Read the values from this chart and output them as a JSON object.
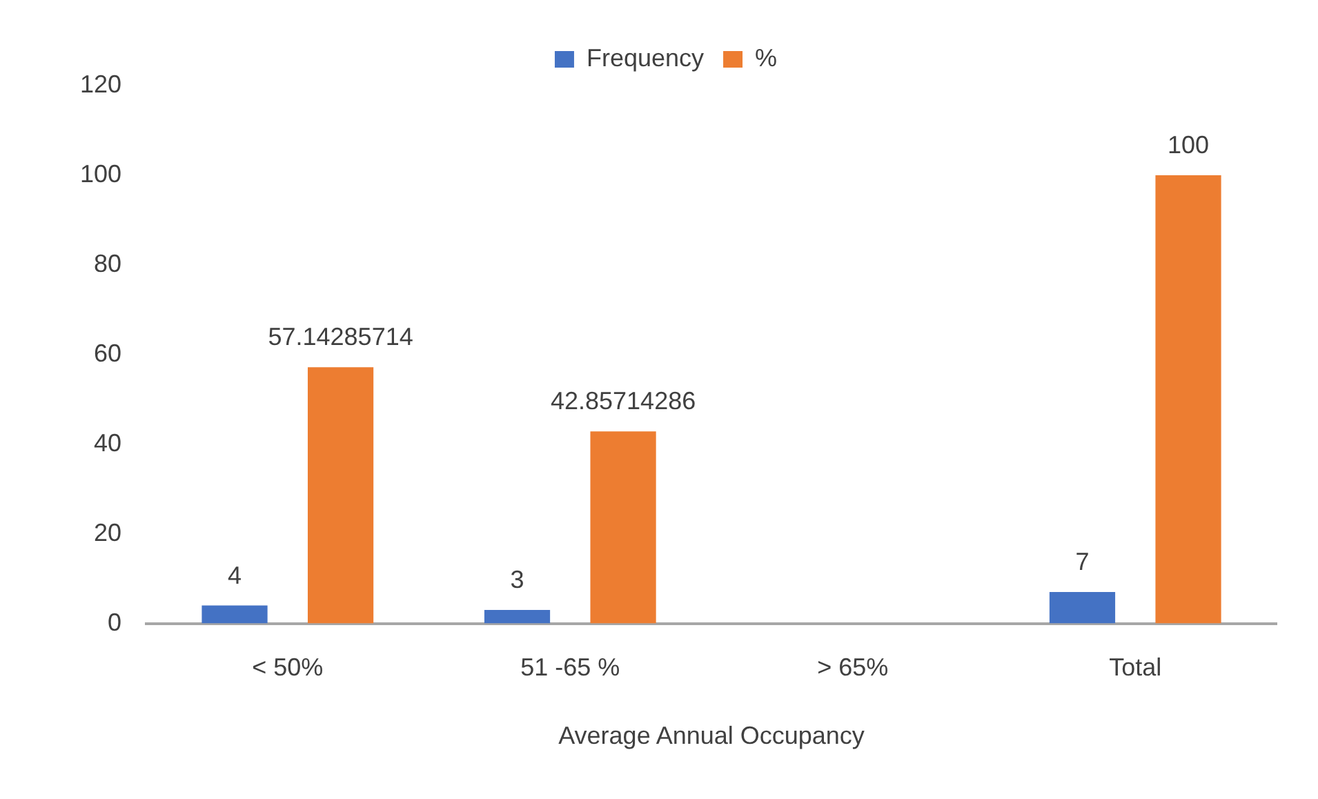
{
  "chart_data": {
    "type": "bar",
    "xlabel": "Average Annual Occupancy",
    "categories": [
      "< 50%",
      "51 -65 %",
      "> 65%",
      "Total"
    ],
    "series": [
      {
        "name": "Frequency",
        "color": "#4472c4",
        "values": [
          4,
          3,
          0,
          7
        ],
        "value_labels": [
          "4",
          "3",
          null,
          "7"
        ]
      },
      {
        "name": "%",
        "color": "#ed7d31",
        "values": [
          57.14285714,
          42.85714286,
          0,
          100
        ],
        "value_labels": [
          "57.14285714",
          "42.85714286",
          null,
          "100"
        ]
      }
    ],
    "ylim": [
      0,
      120
    ],
    "yticks": [
      0,
      20,
      40,
      60,
      80,
      100,
      120
    ],
    "grid": false,
    "legend": "top"
  }
}
